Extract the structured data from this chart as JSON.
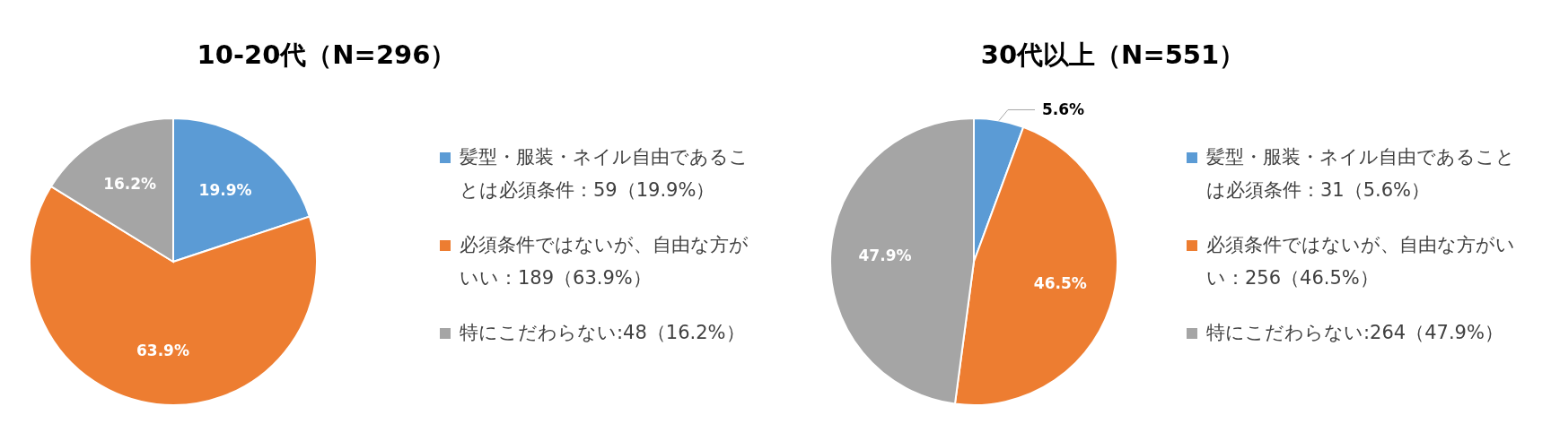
{
  "chart_data": [
    {
      "type": "pie",
      "title": "10-20代（N=296）",
      "categories": [
        "髪型・服装・ネイル自由であることは必須条件：59（19.9%）",
        "必須条件ではないが、自由な方がいい：189（63.9%）",
        "特にこだわらない:48（16.2%）"
      ],
      "values": [
        19.9,
        63.9,
        16.2
      ],
      "value_labels": [
        "19.9%",
        "63.9%",
        "16.2%"
      ],
      "colors": [
        "#5b9bd5",
        "#ed7d31",
        "#a5a5a5"
      ],
      "legend": "right"
    },
    {
      "type": "pie",
      "title": "30代以上（N=551）",
      "categories": [
        "髪型・服装・ネイル自由であることは必須条件：31（5.6%）",
        "必須条件ではないが、自由な方がいい：256（46.5%）",
        "特にこだわらない:264（47.9%）"
      ],
      "values": [
        5.6,
        46.5,
        47.9
      ],
      "value_labels": [
        "5.6%",
        "46.5%",
        "47.9%"
      ],
      "colors": [
        "#5b9bd5",
        "#ed7d31",
        "#a5a5a5"
      ],
      "legend": "right"
    }
  ]
}
